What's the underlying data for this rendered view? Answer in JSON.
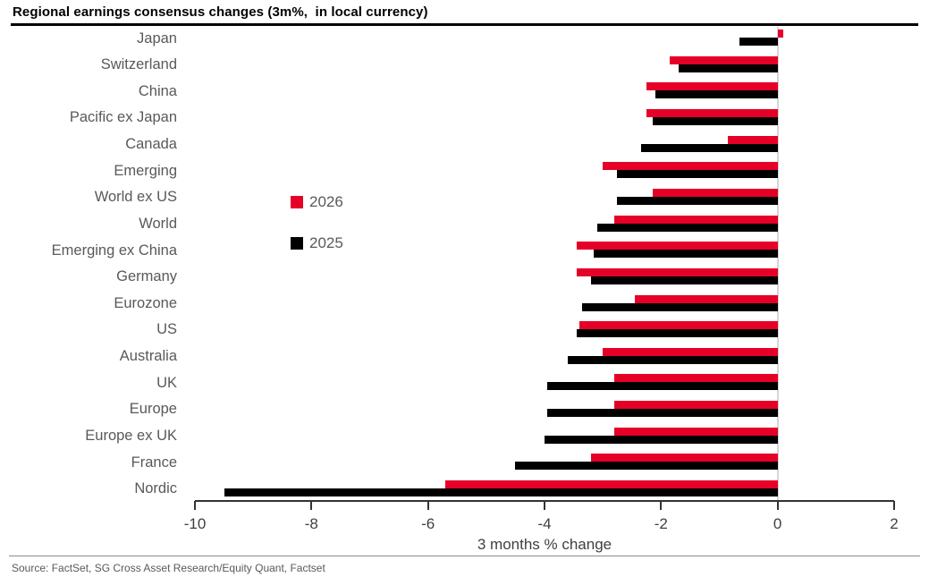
{
  "header": {
    "title": "Regional earnings consensus changes (3m%,  in local currency)"
  },
  "footer": {
    "source": "Source: FactSet, SG Cross Asset Research/Equity Quant, Factset"
  },
  "colors": {
    "series_2026": "#e60028",
    "series_2025": "#000000",
    "label_gray": "#595959",
    "axis_dark": "#333333",
    "zero_gridline": "#d6d6d6"
  },
  "chart_data": {
    "type": "bar",
    "orientation": "horizontal",
    "title": "Regional earnings consensus changes (3m%, in local currency)",
    "xlabel": "3 months % change",
    "xlim": [
      -10,
      2
    ],
    "xticks": [
      -10,
      -8,
      -6,
      -4,
      -2,
      0,
      2
    ],
    "grid": "zero-line-only",
    "legend_position": "center-left",
    "categories": [
      "Japan",
      "Switzerland",
      "China",
      "Pacific ex Japan",
      "Canada",
      "Emerging",
      "World ex US",
      "World",
      "Emerging ex China",
      "Germany",
      "Eurozone",
      "US",
      "Australia",
      "UK",
      "Europe",
      "Europe ex UK",
      "France",
      "Nordic"
    ],
    "series": [
      {
        "name": "2026",
        "color": "#e60028",
        "values": [
          0.1,
          -1.85,
          -2.25,
          -2.25,
          -0.85,
          -3.0,
          -2.15,
          -2.8,
          -3.45,
          -3.45,
          -2.45,
          -3.4,
          -3.0,
          -2.8,
          -2.8,
          -2.8,
          -3.2,
          -5.7
        ]
      },
      {
        "name": "2025",
        "color": "#000000",
        "values": [
          -0.65,
          -1.7,
          -2.1,
          -2.15,
          -2.35,
          -2.75,
          -2.75,
          -3.1,
          -3.15,
          -3.2,
          -3.35,
          -3.45,
          -3.6,
          -3.95,
          -3.95,
          -4.0,
          -4.5,
          -9.5
        ]
      }
    ]
  }
}
